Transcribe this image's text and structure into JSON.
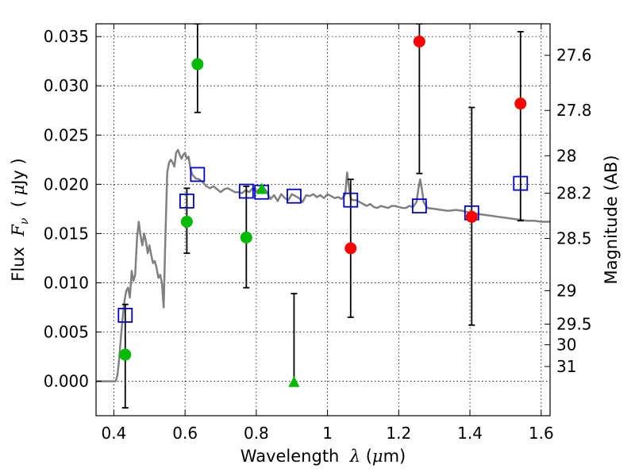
{
  "chart_data": {
    "type": "scatter",
    "xlabel_prefix": "Wavelength  ",
    "xlabel_math": "λ",
    "xlabel_suffix": " (",
    "xlabel_unit_math": "μ",
    "xlabel_unit": "m)",
    "ylabel_prefix": "Flux  ",
    "ylabel_math": "F",
    "ylabel_sub": "ν",
    "ylabel_suffix": "  ( ",
    "ylabel_unit_math": "μ",
    "ylabel_unit": "Jy )",
    "y2label": "Magnitude (AB)",
    "xlim": [
      0.35,
      1.625
    ],
    "ylim": [
      -0.0035,
      0.0363
    ],
    "grid": true,
    "x_ticks": [
      0.4,
      0.6,
      0.8,
      1.0,
      1.2,
      1.4,
      1.6
    ],
    "x_tick_labels": [
      "0.4",
      "0.6",
      "0.8",
      "1",
      "1.2",
      "1.4",
      "1.6"
    ],
    "y_ticks": [
      0.0,
      0.005,
      0.01,
      0.015,
      0.02,
      0.025,
      0.03,
      0.035
    ],
    "y_tick_labels": [
      "0.000",
      "0.005",
      "0.010",
      "0.015",
      "0.020",
      "0.025",
      "0.030",
      "0.035"
    ],
    "y2_ticks": [
      {
        "label": "27.6",
        "flux": 0.0331
      },
      {
        "label": "27.8",
        "flux": 0.0275
      },
      {
        "label": "28",
        "flux": 0.0229
      },
      {
        "label": "28.2",
        "flux": 0.0191
      },
      {
        "label": "28.5",
        "flux": 0.0145
      },
      {
        "label": "29",
        "flux": 0.0092
      },
      {
        "label": "29.5",
        "flux": 0.0058
      },
      {
        "label": "30",
        "flux": 0.0037
      },
      {
        "label": "31",
        "flux": 0.0015
      }
    ],
    "sed_model": {
      "color": "#808080",
      "points": [
        [
          0.35,
          0.0
        ],
        [
          0.4,
          0.0
        ],
        [
          0.405,
          0.0
        ],
        [
          0.41,
          0.0006
        ],
        [
          0.415,
          0.0023
        ],
        [
          0.42,
          0.0045
        ],
        [
          0.425,
          0.0065
        ],
        [
          0.43,
          0.0082
        ],
        [
          0.435,
          0.0092
        ],
        [
          0.44,
          0.0095
        ],
        [
          0.445,
          0.0085
        ],
        [
          0.45,
          0.0112
        ],
        [
          0.455,
          0.0102
        ],
        [
          0.46,
          0.0108
        ],
        [
          0.465,
          0.0145
        ],
        [
          0.47,
          0.0162
        ],
        [
          0.475,
          0.0148
        ],
        [
          0.48,
          0.0138
        ],
        [
          0.485,
          0.015
        ],
        [
          0.49,
          0.0142
        ],
        [
          0.495,
          0.013
        ],
        [
          0.5,
          0.0138
        ],
        [
          0.505,
          0.0128
        ],
        [
          0.51,
          0.012
        ],
        [
          0.515,
          0.0122
        ],
        [
          0.52,
          0.0115
        ],
        [
          0.525,
          0.0105
        ],
        [
          0.53,
          0.0108
        ],
        [
          0.535,
          0.01
        ],
        [
          0.54,
          0.0075
        ],
        [
          0.545,
          0.015
        ],
        [
          0.55,
          0.0212
        ],
        [
          0.555,
          0.0222
        ],
        [
          0.56,
          0.0225
        ],
        [
          0.565,
          0.0222
        ],
        [
          0.57,
          0.0218
        ],
        [
          0.575,
          0.0232
        ],
        [
          0.58,
          0.0235
        ],
        [
          0.585,
          0.023
        ],
        [
          0.59,
          0.0226
        ],
        [
          0.595,
          0.023
        ],
        [
          0.6,
          0.0232
        ],
        [
          0.605,
          0.0226
        ],
        [
          0.61,
          0.0228
        ],
        [
          0.615,
          0.0216
        ],
        [
          0.62,
          0.021
        ],
        [
          0.63,
          0.0206
        ],
        [
          0.64,
          0.0205
        ],
        [
          0.65,
          0.0202
        ],
        [
          0.66,
          0.0198
        ],
        [
          0.67,
          0.0196
        ],
        [
          0.68,
          0.0198
        ],
        [
          0.69,
          0.0195
        ],
        [
          0.7,
          0.0192
        ],
        [
          0.71,
          0.0195
        ],
        [
          0.72,
          0.0196
        ],
        [
          0.73,
          0.0194
        ],
        [
          0.74,
          0.0192
        ],
        [
          0.75,
          0.0192
        ],
        [
          0.76,
          0.0191
        ],
        [
          0.77,
          0.0194
        ],
        [
          0.78,
          0.0192
        ],
        [
          0.79,
          0.0196
        ],
        [
          0.8,
          0.0193
        ],
        [
          0.81,
          0.0195
        ],
        [
          0.82,
          0.0197
        ],
        [
          0.83,
          0.0192
        ],
        [
          0.84,
          0.0185
        ],
        [
          0.85,
          0.0189
        ],
        [
          0.86,
          0.0183
        ],
        [
          0.87,
          0.019
        ],
        [
          0.88,
          0.0186
        ],
        [
          0.89,
          0.0184
        ],
        [
          0.9,
          0.019
        ],
        [
          0.91,
          0.0188
        ],
        [
          0.92,
          0.0186
        ],
        [
          0.93,
          0.0182
        ],
        [
          0.94,
          0.0189
        ],
        [
          0.95,
          0.0188
        ],
        [
          0.96,
          0.019
        ],
        [
          0.97,
          0.0187
        ],
        [
          0.98,
          0.0189
        ],
        [
          0.99,
          0.0186
        ],
        [
          1.0,
          0.019
        ],
        [
          1.01,
          0.0188
        ],
        [
          1.02,
          0.0186
        ],
        [
          1.03,
          0.0187
        ],
        [
          1.04,
          0.0185
        ],
        [
          1.05,
          0.019
        ],
        [
          1.055,
          0.0212
        ],
        [
          1.06,
          0.0198
        ],
        [
          1.065,
          0.0186
        ],
        [
          1.07,
          0.0184
        ],
        [
          1.08,
          0.0184
        ],
        [
          1.09,
          0.0182
        ],
        [
          1.1,
          0.018
        ],
        [
          1.11,
          0.0178
        ],
        [
          1.12,
          0.018
        ],
        [
          1.13,
          0.0177
        ],
        [
          1.14,
          0.0176
        ],
        [
          1.15,
          0.0178
        ],
        [
          1.16,
          0.0177
        ],
        [
          1.17,
          0.0176
        ],
        [
          1.18,
          0.0178
        ],
        [
          1.19,
          0.0178
        ],
        [
          1.2,
          0.0177
        ],
        [
          1.21,
          0.0176
        ],
        [
          1.22,
          0.0176
        ],
        [
          1.23,
          0.0178
        ],
        [
          1.24,
          0.0177
        ],
        [
          1.25,
          0.0182
        ],
        [
          1.255,
          0.0195
        ],
        [
          1.26,
          0.0205
        ],
        [
          1.265,
          0.0195
        ],
        [
          1.27,
          0.0182
        ],
        [
          1.28,
          0.0176
        ],
        [
          1.3,
          0.0175
        ],
        [
          1.32,
          0.0174
        ],
        [
          1.34,
          0.0173
        ],
        [
          1.36,
          0.0174
        ],
        [
          1.38,
          0.0173
        ],
        [
          1.4,
          0.0171
        ],
        [
          1.42,
          0.017
        ],
        [
          1.44,
          0.0169
        ],
        [
          1.46,
          0.0168
        ],
        [
          1.48,
          0.0167
        ],
        [
          1.5,
          0.0166
        ],
        [
          1.52,
          0.0165
        ],
        [
          1.54,
          0.0164
        ],
        [
          1.56,
          0.0163
        ],
        [
          1.58,
          0.0163
        ],
        [
          1.6,
          0.0162
        ],
        [
          1.625,
          0.0162
        ]
      ]
    },
    "error_bars": [
      {
        "x": 0.432,
        "low": -0.0027,
        "high": 0.0078
      },
      {
        "x": 0.605,
        "low": 0.013,
        "high": 0.0196
      },
      {
        "x": 0.635,
        "low": 0.0273,
        "high": 0.0363
      },
      {
        "x": 0.772,
        "low": 0.0095,
        "high": 0.0198
      },
      {
        "x": 0.906,
        "low": -0.0004,
        "high": 0.0089
      },
      {
        "x": 1.065,
        "low": 0.0065,
        "high": 0.0205
      },
      {
        "x": 1.258,
        "low": 0.0211,
        "high": 0.0363
      },
      {
        "x": 1.405,
        "low": 0.0057,
        "high": 0.0278
      },
      {
        "x": 1.542,
        "low": 0.0163,
        "high": 0.0355
      }
    ],
    "model_fluxes": {
      "color": "#0000cc",
      "points": [
        [
          0.432,
          0.0067
        ],
        [
          0.605,
          0.0183
        ],
        [
          0.635,
          0.021
        ],
        [
          0.772,
          0.0193
        ],
        [
          0.815,
          0.0192
        ],
        [
          0.906,
          0.0188
        ],
        [
          1.065,
          0.0184
        ],
        [
          1.258,
          0.0178
        ],
        [
          1.405,
          0.0171
        ],
        [
          1.542,
          0.0201
        ]
      ]
    },
    "observed_green": {
      "color": "#00bb00",
      "points": [
        [
          0.432,
          0.0027
        ],
        [
          0.605,
          0.0162
        ],
        [
          0.635,
          0.0322
        ],
        [
          0.772,
          0.0146
        ]
      ]
    },
    "observed_green_triangles": {
      "color": "#00bb00",
      "points": [
        [
          0.815,
          0.0195
        ],
        [
          0.906,
          -0.0001
        ]
      ]
    },
    "observed_red": {
      "color": "#ff0000",
      "points": [
        [
          1.065,
          0.0135
        ],
        [
          1.258,
          0.0345
        ],
        [
          1.405,
          0.0167
        ],
        [
          1.542,
          0.0282
        ]
      ]
    }
  }
}
